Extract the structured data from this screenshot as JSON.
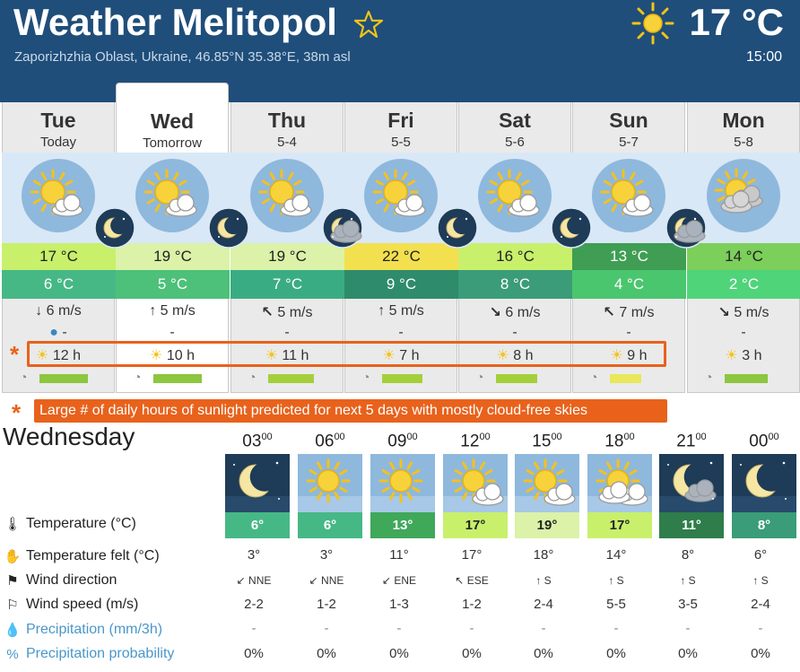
{
  "header": {
    "title": "Weather Melitopol",
    "subtitle": "Zaporizhzhia Oblast, Ukraine, 46.85°N 35.38°E, 38m asl",
    "current_temp": "17 °C",
    "time": "15:00",
    "star_icon": "star-outline-icon",
    "weather_icon": "sun-icon"
  },
  "days": [
    {
      "name": "Tue",
      "sub": "Today",
      "max": "17 °C",
      "min": "6 °C",
      "wind": "6 m/s",
      "wind_arrow": "↓",
      "precip": "-",
      "sun": "12 h",
      "sun_fraction": 0.85,
      "max_color": "#c8f06b",
      "min_color": "#46b886",
      "bar_color": "#8dc63f"
    },
    {
      "name": "Wed",
      "sub": "Tomorrow",
      "max": "19 °C",
      "min": "5 °C",
      "wind": "5 m/s",
      "wind_arrow": "↑",
      "precip": "-",
      "sun": "10 h",
      "sun_fraction": 0.85,
      "max_color": "#dbf2a8",
      "min_color": "#4dc07a",
      "bar_color": "#8dc63f"
    },
    {
      "name": "Thu",
      "sub": "5-4",
      "max": "19 °C",
      "min": "7 °C",
      "wind": "5 m/s",
      "wind_arrow": "↖",
      "precip": "-",
      "sun": "11 h",
      "sun_fraction": 0.8,
      "max_color": "#dbf2a8",
      "min_color": "#3aac84",
      "bar_color": "#a5cf3a"
    },
    {
      "name": "Fri",
      "sub": "5-5",
      "max": "22 °C",
      "min": "9 °C",
      "wind": "5 m/s",
      "wind_arrow": "↑",
      "precip": "-",
      "sun": "7 h",
      "sun_fraction": 0.7,
      "max_color": "#f3e04f",
      "min_color": "#2e8b6b",
      "bar_color": "#a5cf3a"
    },
    {
      "name": "Sat",
      "sub": "5-6",
      "max": "16 °C",
      "min": "8 °C",
      "wind": "6 m/s",
      "wind_arrow": "↘",
      "precip": "-",
      "sun": "8 h",
      "sun_fraction": 0.72,
      "max_color": "#c8f06b",
      "min_color": "#3a9c78",
      "bar_color": "#a5cf3a"
    },
    {
      "name": "Sun",
      "sub": "5-7",
      "max": "13 °C",
      "min": "4 °C",
      "wind": "7 m/s",
      "wind_arrow": "↖",
      "precip": "-",
      "sun": "9 h",
      "sun_fraction": 0.55,
      "max_color": "#3f9e53",
      "min_color": "#4ac66e",
      "bar_color": "#e8e85a"
    },
    {
      "name": "Mon",
      "sub": "5-8",
      "max": "14 °C",
      "min": "2 °C",
      "wind": "5 m/s",
      "wind_arrow": "↘",
      "precip": "-",
      "sun": "3 h",
      "sun_fraction": 0.75,
      "max_color": "#7ccf5a",
      "min_color": "#4fd47a",
      "bar_color": "#8dc63f"
    }
  ],
  "callout": "Large # of daily hours of sunlight predicted for next 5 days with mostly cloud-free skies",
  "asterisk": "*",
  "detail": {
    "title": "Wednesday",
    "hours": [
      {
        "h": "03",
        "m": "00",
        "temp": "6°",
        "felt": "3°",
        "dir": "NNE",
        "arrow": "↙",
        "speed": "2-2",
        "precip": "-",
        "prob": "0%",
        "tcolor": "#46b886",
        "night": true
      },
      {
        "h": "06",
        "m": "00",
        "temp": "6°",
        "felt": "3°",
        "dir": "NNE",
        "arrow": "↙",
        "speed": "1-2",
        "precip": "-",
        "prob": "0%",
        "tcolor": "#46b886",
        "night": false
      },
      {
        "h": "09",
        "m": "00",
        "temp": "13°",
        "felt": "11°",
        "dir": "ENE",
        "arrow": "↙",
        "speed": "1-3",
        "precip": "-",
        "prob": "0%",
        "tcolor": "#3fa859",
        "night": false
      },
      {
        "h": "12",
        "m": "00",
        "temp": "17°",
        "felt": "17°",
        "dir": "ESE",
        "arrow": "↖",
        "speed": "1-2",
        "precip": "-",
        "prob": "0%",
        "tcolor": "#c8f06b",
        "night": false
      },
      {
        "h": "15",
        "m": "00",
        "temp": "19°",
        "felt": "18°",
        "dir": "S",
        "arrow": "↑",
        "speed": "2-4",
        "precip": "-",
        "prob": "0%",
        "tcolor": "#dbf2a8",
        "night": false
      },
      {
        "h": "18",
        "m": "00",
        "temp": "17°",
        "felt": "14°",
        "dir": "S",
        "arrow": "↑",
        "speed": "5-5",
        "precip": "-",
        "prob": "0%",
        "tcolor": "#c8f06b",
        "night": false
      },
      {
        "h": "21",
        "m": "00",
        "temp": "11°",
        "felt": "8°",
        "dir": "S",
        "arrow": "↑",
        "speed": "3-5",
        "precip": "-",
        "prob": "0%",
        "tcolor": "#2e7d4a",
        "night": true
      },
      {
        "h": "00",
        "m": "00",
        "temp": "8°",
        "felt": "6°",
        "dir": "S",
        "arrow": "↑",
        "speed": "2-4",
        "precip": "-",
        "prob": "0%",
        "tcolor": "#3a9c78",
        "night": true
      }
    ],
    "labels": {
      "temperature": "Temperature (°C)",
      "felt": "Temperature felt (°C)",
      "direction": "Wind direction",
      "speed": "Wind speed (m/s)",
      "precip": "Precipitation (mm/3h)",
      "prob": "Precipitation probability"
    }
  }
}
